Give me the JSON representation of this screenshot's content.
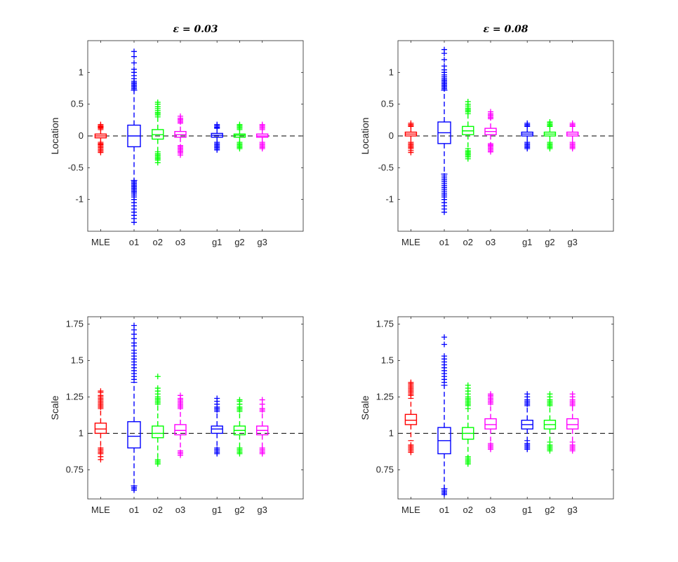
{
  "chart_data": [
    {
      "type": "box",
      "title": "ε = 0.03",
      "xlabel": "",
      "ylabel": "Location",
      "categories": [
        "MLE",
        "o1",
        "o2",
        "o3",
        "g1",
        "g2",
        "g3"
      ],
      "ylim": [
        -1.5,
        1.5
      ],
      "yticks": [
        -1,
        -0.5,
        0,
        0.5,
        1
      ],
      "ytick_labels": [
        "-1",
        "-0.5",
        "0",
        "0.5",
        "1"
      ],
      "reference_line": 0,
      "colors": [
        "#ff0000",
        "#0000ff",
        "#00ff00",
        "#ff00ff",
        "#0000ff",
        "#00ff00",
        "#ff00ff"
      ],
      "boxes": [
        {
          "q1": -0.03,
          "median": 0.0,
          "q3": 0.03,
          "wlo": -0.1,
          "whi": 0.1,
          "outliers": [
            -0.26,
            -0.24,
            -0.22,
            -0.2,
            -0.18,
            -0.16,
            -0.14,
            -0.13,
            -0.12,
            0.12,
            0.13,
            0.14,
            0.15,
            0.16,
            0.18
          ]
        },
        {
          "q1": -0.17,
          "median": 0.0,
          "q3": 0.17,
          "wlo": -0.7,
          "whi": 0.72,
          "outliers": [
            -1.36,
            -1.3,
            -1.25,
            -1.2,
            -1.15,
            -1.1,
            -1.05,
            -1.0,
            -0.96,
            -0.93,
            -0.9,
            -0.88,
            -0.86,
            -0.84,
            -0.82,
            -0.8,
            -0.78,
            -0.76,
            -0.74,
            -0.72,
            0.74,
            0.76,
            0.78,
            0.8,
            0.82,
            0.84,
            0.86,
            0.9,
            0.95,
            1.0,
            1.05,
            1.15,
            1.25,
            1.33
          ]
        },
        {
          "q1": -0.05,
          "median": 0.02,
          "q3": 0.1,
          "wlo": -0.25,
          "whi": 0.3,
          "outliers": [
            -0.42,
            -0.38,
            -0.36,
            -0.34,
            -0.32,
            -0.3,
            -0.28,
            0.33,
            0.35,
            0.37,
            0.4,
            0.43,
            0.46,
            0.5,
            0.53
          ]
        },
        {
          "q1": -0.02,
          "median": 0.02,
          "q3": 0.07,
          "wlo": -0.15,
          "whi": 0.2,
          "outliers": [
            -0.3,
            -0.27,
            -0.25,
            -0.23,
            -0.21,
            -0.19,
            -0.17,
            0.22,
            0.24,
            0.26,
            0.28,
            0.31
          ]
        },
        {
          "q1": -0.02,
          "median": 0.01,
          "q3": 0.04,
          "wlo": -0.1,
          "whi": 0.12,
          "outliers": [
            -0.22,
            -0.2,
            -0.18,
            -0.16,
            -0.14,
            -0.12,
            0.13,
            0.14,
            0.16,
            0.18
          ]
        },
        {
          "q1": -0.02,
          "median": 0.01,
          "q3": 0.03,
          "wlo": -0.1,
          "whi": 0.1,
          "outliers": [
            -0.2,
            -0.18,
            -0.16,
            -0.14,
            -0.12,
            0.12,
            0.14,
            0.16,
            0.18
          ]
        },
        {
          "q1": -0.02,
          "median": 0.0,
          "q3": 0.03,
          "wlo": -0.1,
          "whi": 0.1,
          "outliers": [
            -0.2,
            -0.18,
            -0.16,
            -0.14,
            -0.12,
            0.12,
            0.14,
            0.16,
            0.18
          ]
        }
      ]
    },
    {
      "type": "box",
      "title": "ε = 0.08",
      "xlabel": "",
      "ylabel": "Location",
      "categories": [
        "MLE",
        "o1",
        "o2",
        "o3",
        "g1",
        "g2",
        "g3"
      ],
      "ylim": [
        -1.5,
        1.5
      ],
      "yticks": [
        -1,
        -0.5,
        0,
        0.5,
        1
      ],
      "ytick_labels": [
        "-1",
        "-0.5",
        "0",
        "0.5",
        "1"
      ],
      "reference_line": 0,
      "colors": [
        "#ff0000",
        "#0000ff",
        "#00ff00",
        "#ff00ff",
        "#0000ff",
        "#00ff00",
        "#ff00ff"
      ],
      "boxes": [
        {
          "q1": 0.0,
          "median": 0.03,
          "q3": 0.06,
          "wlo": -0.1,
          "whi": 0.15,
          "outliers": [
            -0.26,
            -0.23,
            -0.2,
            -0.18,
            -0.16,
            -0.14,
            -0.12,
            0.16,
            0.18,
            0.2
          ]
        },
        {
          "q1": -0.12,
          "median": 0.05,
          "q3": 0.22,
          "wlo": -0.6,
          "whi": 0.72,
          "outliers": [
            -1.2,
            -1.15,
            -1.1,
            -1.05,
            -1.0,
            -0.96,
            -0.93,
            -0.9,
            -0.87,
            -0.84,
            -0.81,
            -0.78,
            -0.75,
            -0.72,
            -0.69,
            -0.66,
            -0.63,
            0.74,
            0.76,
            0.78,
            0.8,
            0.82,
            0.84,
            0.86,
            0.88,
            0.9,
            0.93,
            0.96,
            1.0,
            1.04,
            1.1,
            1.2,
            1.3,
            1.36
          ]
        },
        {
          "q1": 0.02,
          "median": 0.08,
          "q3": 0.15,
          "wlo": -0.2,
          "whi": 0.35,
          "outliers": [
            -0.36,
            -0.33,
            -0.31,
            -0.29,
            -0.27,
            -0.25,
            -0.23,
            0.38,
            0.4,
            0.42,
            0.44,
            0.47,
            0.5,
            0.54
          ]
        },
        {
          "q1": 0.02,
          "median": 0.07,
          "q3": 0.12,
          "wlo": -0.12,
          "whi": 0.27,
          "outliers": [
            -0.25,
            -0.23,
            -0.21,
            -0.19,
            -0.17,
            -0.15,
            -0.14,
            0.29,
            0.31,
            0.33,
            0.35,
            0.38
          ]
        },
        {
          "q1": 0.0,
          "median": 0.03,
          "q3": 0.06,
          "wlo": -0.1,
          "whi": 0.15,
          "outliers": [
            -0.2,
            -0.18,
            -0.16,
            -0.14,
            -0.12,
            0.16,
            0.18,
            0.2
          ]
        },
        {
          "q1": 0.0,
          "median": 0.03,
          "q3": 0.06,
          "wlo": -0.1,
          "whi": 0.15,
          "outliers": [
            -0.2,
            -0.18,
            -0.16,
            -0.14,
            -0.12,
            0.16,
            0.18,
            0.2,
            0.22
          ]
        },
        {
          "q1": 0.0,
          "median": 0.03,
          "q3": 0.06,
          "wlo": -0.1,
          "whi": 0.15,
          "outliers": [
            -0.2,
            -0.18,
            -0.16,
            -0.14,
            -0.12,
            0.16,
            0.18,
            0.2
          ]
        }
      ]
    },
    {
      "type": "box",
      "title": "",
      "xlabel": "",
      "ylabel": "Scale",
      "categories": [
        "MLE",
        "o1",
        "o2",
        "o3",
        "g1",
        "g2",
        "g3"
      ],
      "ylim": [
        0.55,
        1.8
      ],
      "yticks": [
        0.75,
        1,
        1.25,
        1.5,
        1.75
      ],
      "ytick_labels": [
        "0.75",
        "1",
        "1.25",
        "1.5",
        "1.75"
      ],
      "reference_line": 1,
      "colors": [
        "#ff0000",
        "#0000ff",
        "#00ff00",
        "#ff00ff",
        "#0000ff",
        "#00ff00",
        "#ff00ff"
      ],
      "boxes": [
        {
          "q1": 1.0,
          "median": 1.03,
          "q3": 1.07,
          "wlo": 0.9,
          "whi": 1.17,
          "outliers": [
            0.82,
            0.84,
            0.86,
            0.87,
            0.88,
            0.89,
            1.18,
            1.19,
            1.2,
            1.21,
            1.22,
            1.23,
            1.24,
            1.25,
            1.26,
            1.28,
            1.29
          ]
        },
        {
          "q1": 0.9,
          "median": 0.98,
          "q3": 1.08,
          "wlo": 0.64,
          "whi": 1.35,
          "outliers": [
            0.61,
            0.62,
            0.63,
            1.37,
            1.39,
            1.41,
            1.43,
            1.45,
            1.47,
            1.49,
            1.51,
            1.53,
            1.55,
            1.57,
            1.6,
            1.62,
            1.65,
            1.68,
            1.71,
            1.74
          ]
        },
        {
          "q1": 0.97,
          "median": 1.0,
          "q3": 1.05,
          "wlo": 0.82,
          "whi": 1.2,
          "outliers": [
            0.79,
            0.8,
            0.81,
            1.21,
            1.22,
            1.23,
            1.24,
            1.25,
            1.27,
            1.29,
            1.31,
            1.39
          ]
        },
        {
          "q1": 0.99,
          "median": 1.02,
          "q3": 1.06,
          "wlo": 0.88,
          "whi": 1.17,
          "outliers": [
            0.85,
            0.86,
            0.87,
            1.18,
            1.19,
            1.2,
            1.21,
            1.22,
            1.23,
            1.24,
            1.26
          ]
        },
        {
          "q1": 1.0,
          "median": 1.03,
          "q3": 1.05,
          "wlo": 0.9,
          "whi": 1.15,
          "outliers": [
            0.86,
            0.87,
            0.88,
            0.89,
            1.16,
            1.17,
            1.18,
            1.2,
            1.22,
            1.24
          ]
        },
        {
          "q1": 0.99,
          "median": 1.02,
          "q3": 1.05,
          "wlo": 0.9,
          "whi": 1.15,
          "outliers": [
            0.86,
            0.87,
            0.88,
            0.89,
            1.16,
            1.17,
            1.18,
            1.2,
            1.22,
            1.23
          ]
        },
        {
          "q1": 0.99,
          "median": 1.02,
          "q3": 1.05,
          "wlo": 0.9,
          "whi": 1.15,
          "outliers": [
            0.86,
            0.87,
            0.88,
            0.89,
            1.16,
            1.17,
            1.2,
            1.23
          ]
        }
      ]
    },
    {
      "type": "box",
      "title": "",
      "xlabel": "",
      "ylabel": "Scale",
      "categories": [
        "MLE",
        "o1",
        "o2",
        "o3",
        "g1",
        "g2",
        "g3"
      ],
      "ylim": [
        0.55,
        1.8
      ],
      "yticks": [
        0.75,
        1,
        1.25,
        1.5,
        1.75
      ],
      "ytick_labels": [
        "0.75",
        "1",
        "1.25",
        "1.5",
        "1.75"
      ],
      "reference_line": 1,
      "colors": [
        "#ff0000",
        "#0000ff",
        "#00ff00",
        "#ff00ff",
        "#0000ff",
        "#00ff00",
        "#ff00ff"
      ],
      "boxes": [
        {
          "q1": 1.06,
          "median": 1.09,
          "q3": 1.13,
          "wlo": 0.95,
          "whi": 1.24,
          "outliers": [
            0.87,
            0.88,
            0.89,
            0.9,
            0.91,
            0.92,
            1.26,
            1.27,
            1.28,
            1.29,
            1.3,
            1.31,
            1.32,
            1.33,
            1.34,
            1.35
          ]
        },
        {
          "q1": 0.86,
          "median": 0.95,
          "q3": 1.04,
          "wlo": 0.62,
          "whi": 1.33,
          "outliers": [
            0.58,
            0.59,
            0.6,
            0.61,
            1.35,
            1.37,
            1.39,
            1.41,
            1.43,
            1.45,
            1.47,
            1.49,
            1.51,
            1.53,
            1.61,
            1.66
          ]
        },
        {
          "q1": 0.96,
          "median": 1.0,
          "q3": 1.04,
          "wlo": 0.84,
          "whi": 1.17,
          "outliers": [
            0.79,
            0.8,
            0.81,
            0.82,
            0.83,
            1.19,
            1.2,
            1.21,
            1.22,
            1.23,
            1.24,
            1.25,
            1.27,
            1.29,
            1.31,
            1.33
          ]
        },
        {
          "q1": 1.03,
          "median": 1.06,
          "q3": 1.1,
          "wlo": 0.93,
          "whi": 1.2,
          "outliers": [
            0.89,
            0.9,
            0.91,
            0.92,
            1.21,
            1.22,
            1.23,
            1.24,
            1.25,
            1.26,
            1.27
          ]
        },
        {
          "q1": 1.03,
          "median": 1.06,
          "q3": 1.09,
          "wlo": 0.95,
          "whi": 1.19,
          "outliers": [
            0.89,
            0.9,
            0.91,
            0.92,
            0.93,
            1.2,
            1.21,
            1.22,
            1.23,
            1.25,
            1.27
          ]
        },
        {
          "q1": 1.03,
          "median": 1.06,
          "q3": 1.09,
          "wlo": 0.94,
          "whi": 1.19,
          "outliers": [
            0.88,
            0.89,
            0.9,
            0.91,
            0.92,
            1.2,
            1.21,
            1.22,
            1.23,
            1.25,
            1.27
          ]
        },
        {
          "q1": 1.03,
          "median": 1.06,
          "q3": 1.1,
          "wlo": 0.94,
          "whi": 1.19,
          "outliers": [
            0.88,
            0.89,
            0.9,
            0.91,
            0.92,
            1.2,
            1.21,
            1.22,
            1.23,
            1.25,
            1.27
          ]
        }
      ]
    }
  ]
}
